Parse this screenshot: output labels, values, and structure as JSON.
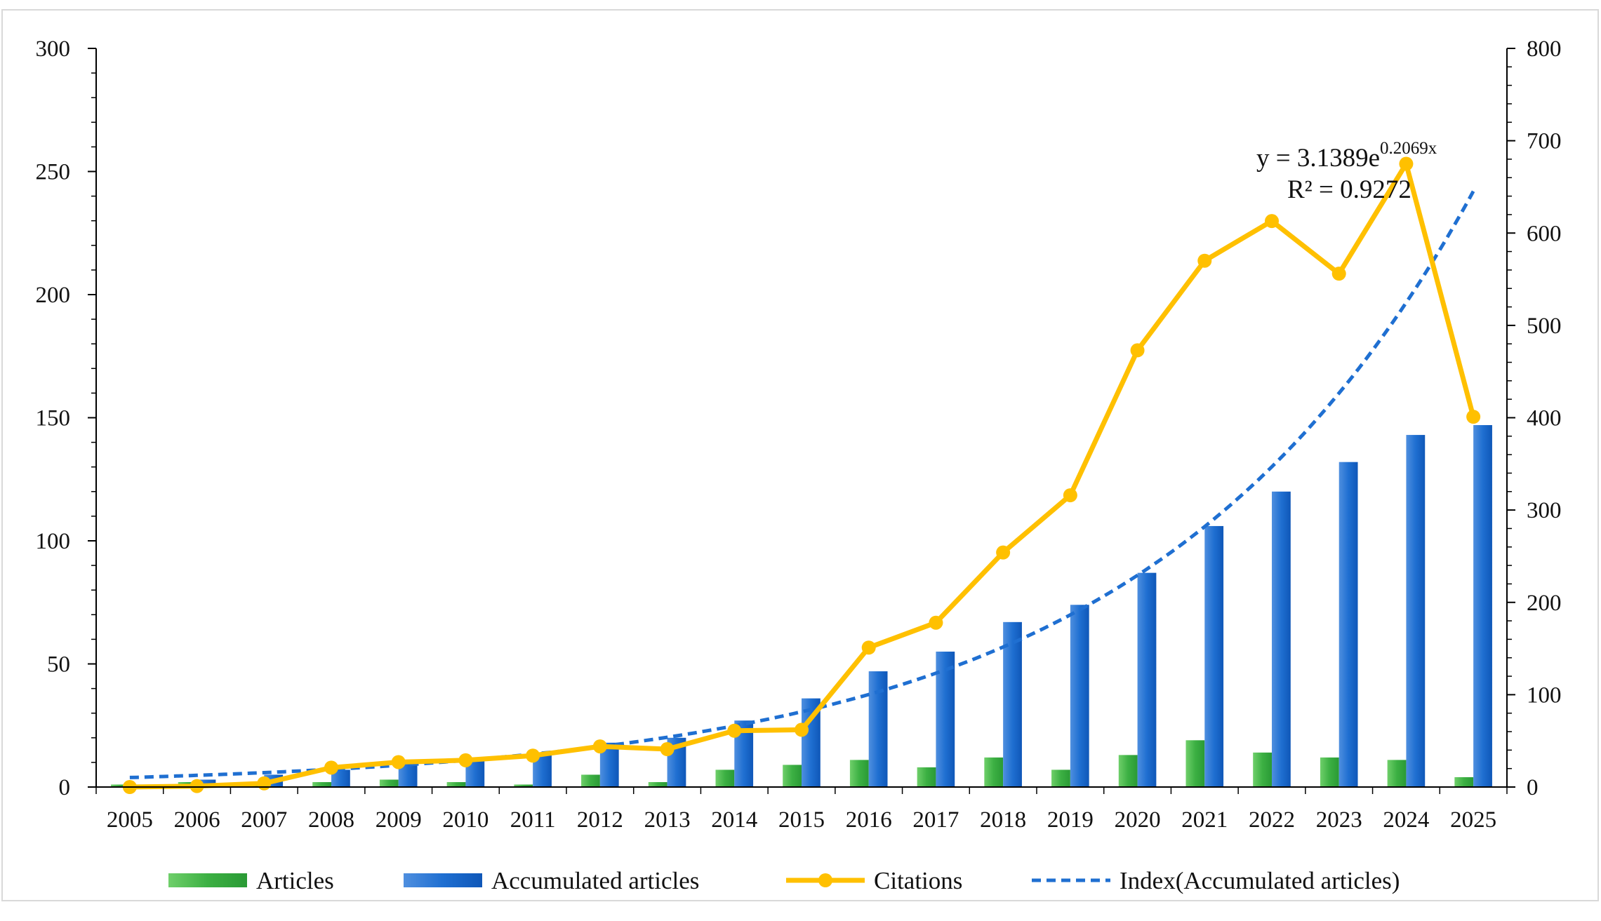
{
  "chart_data": {
    "type": "bar",
    "title": "",
    "xlabel": "",
    "ylabel": "",
    "categories": [
      "2005",
      "2006",
      "2007",
      "2008",
      "2009",
      "2010",
      "2011",
      "2012",
      "2013",
      "2014",
      "2015",
      "2016",
      "2017",
      "2018",
      "2019",
      "2020",
      "2021",
      "2022",
      "2023",
      "2024",
      "2025"
    ],
    "y_left": {
      "min": 0,
      "max": 300,
      "ticks": [
        0,
        50,
        100,
        150,
        200,
        250,
        300
      ]
    },
    "y_right": {
      "min": 0,
      "max": 800,
      "ticks": [
        0,
        100,
        200,
        300,
        400,
        500,
        600,
        700,
        800
      ]
    },
    "series": [
      {
        "name": "Articles",
        "kind": "bar",
        "axis": "left",
        "color": "#3cb043",
        "values": [
          1,
          2,
          2,
          2,
          3,
          2,
          1,
          5,
          2,
          7,
          9,
          11,
          8,
          12,
          7,
          13,
          19,
          14,
          12,
          11,
          4
        ]
      },
      {
        "name": "Accumulated articles",
        "kind": "bar",
        "axis": "left",
        "color": "#1f6fd1",
        "values": [
          1,
          3,
          5,
          7,
          10,
          12,
          13,
          18,
          20,
          27,
          36,
          47,
          55,
          67,
          74,
          87,
          106,
          120,
          132,
          143,
          147
        ]
      },
      {
        "name": "Citations",
        "kind": "line",
        "axis": "right",
        "color": "#ffc000",
        "values": [
          0,
          1,
          4,
          21,
          27,
          29,
          34,
          44,
          41,
          61,
          62,
          151,
          178,
          254,
          316,
          473,
          570,
          613,
          556,
          675,
          401
        ]
      },
      {
        "name": "Index(Accumulated articles)",
        "kind": "trendline",
        "axis": "left",
        "color": "#1f6fd1",
        "equation": {
          "a": 3.1389,
          "b": 0.2069
        }
      }
    ],
    "annotation": {
      "equation": "y = 3.1389e",
      "exponent": "0.2069x",
      "r2": "R² = 0.9272"
    },
    "legend": {
      "placement": "bottom"
    },
    "grid": false
  }
}
